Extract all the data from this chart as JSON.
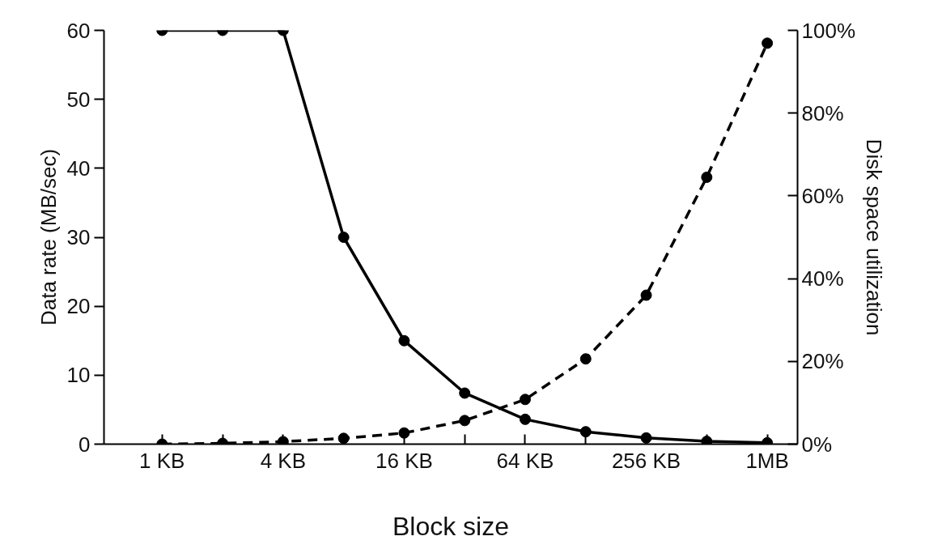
{
  "chart_data": {
    "type": "line",
    "xlabel": "Block size",
    "ylabel": "Data rate (MB/sec)",
    "y2label": "Disk space utilization",
    "categories": [
      "1 KB",
      null,
      "4 KB",
      null,
      "16 KB",
      null,
      "64 KB",
      null,
      "256 KB",
      null,
      "1MB"
    ],
    "ylim": [
      0,
      60
    ],
    "yticks": [
      0,
      10,
      20,
      30,
      40,
      50,
      60
    ],
    "y2lim": [
      0,
      100
    ],
    "y2ticks": [
      {
        "value": 0,
        "label": "0%"
      },
      {
        "value": 20,
        "label": "20%"
      },
      {
        "value": 40,
        "label": "40%"
      },
      {
        "value": 60,
        "label": "60%"
      },
      {
        "value": 80,
        "label": "80%"
      },
      {
        "value": 100,
        "label": "100%"
      }
    ],
    "grid": false,
    "marker": "circle",
    "series": [
      {
        "color": "#000000",
        "line_style": "solid",
        "values": [
          60,
          60,
          60,
          30,
          15,
          7.4,
          3.6,
          1.8,
          0.9,
          0.4,
          0.2
        ]
      },
      {
        "color": "#000000",
        "line_style": "dashed",
        "axis": "y2",
        "values": [
          0,
          0.2,
          0.6,
          1.4,
          2.7,
          5.7,
          10.8,
          20.6,
          36,
          64.5,
          96.9
        ]
      }
    ]
  }
}
